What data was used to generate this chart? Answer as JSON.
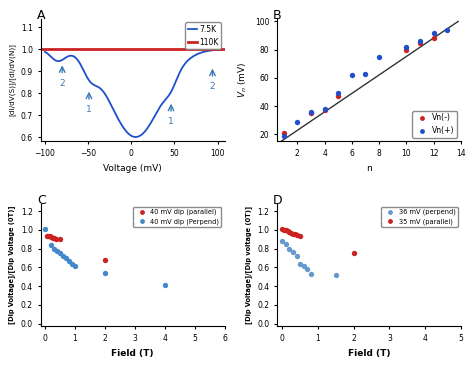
{
  "panel_A": {
    "title": "A",
    "xlabel": "Voltage (mV)",
    "ylabel": "[dI/dV(S)]/[dI/dV(N)]",
    "xlim": [
      -105,
      108
    ],
    "ylim": [
      0.58,
      1.14
    ],
    "yticks": [
      0.6,
      0.7,
      0.8,
      0.9,
      1.0,
      1.1
    ],
    "xticks": [
      -100,
      -50,
      0,
      50,
      100
    ],
    "line_75K_color": "#1f4fcc",
    "line_110K_color": "#cc2222",
    "legend_75K": "7.5K",
    "legend_110K": "110K",
    "arrow_color": "#3a7ab5"
  },
  "panel_B": {
    "title": "B",
    "xlabel": "n",
    "ylabel": "V_n (mV)",
    "xlim": [
      0.5,
      14
    ],
    "ylim": [
      15,
      102
    ],
    "yticks": [
      20,
      40,
      60,
      80,
      100
    ],
    "xticks": [
      2,
      4,
      6,
      8,
      10,
      12,
      14
    ],
    "Vn_neg_x": [
      1,
      3,
      4,
      5,
      10,
      11,
      12
    ],
    "Vn_neg_y": [
      21,
      35,
      37,
      47,
      80,
      85,
      88
    ],
    "Vn_pos_x": [
      1,
      2,
      3,
      4,
      5,
      6,
      7,
      8,
      10,
      11,
      12,
      13
    ],
    "Vn_pos_y": [
      19,
      29,
      36,
      38,
      49,
      62,
      63,
      75,
      82,
      86,
      92,
      94
    ],
    "fit_x": [
      0.5,
      13.8
    ],
    "fit_y": [
      13,
      100
    ],
    "neg_color": "#cc2222",
    "pos_color": "#1f4fcc"
  },
  "panel_C": {
    "title": "C",
    "xlabel": "Field (T)",
    "ylabel": "[Dip Voltage]/[Dip Voltage (0T)]",
    "xlim": [
      -0.15,
      6
    ],
    "ylim": [
      -0.03,
      1.28
    ],
    "yticks": [
      0,
      0.2,
      0.4,
      0.6,
      0.8,
      1.0,
      1.2
    ],
    "xticks": [
      0,
      1,
      2,
      3,
      4,
      5,
      6
    ],
    "parallel_x": [
      0.05,
      0.1,
      0.15,
      0.2,
      0.25,
      0.3,
      0.35,
      0.5,
      2.0
    ],
    "parallel_y": [
      0.93,
      0.94,
      0.93,
      0.92,
      0.91,
      0.91,
      0.9,
      0.9,
      0.68
    ],
    "perp_x": [
      0.0,
      0.2,
      0.3,
      0.4,
      0.5,
      0.6,
      0.7,
      0.8,
      0.9,
      1.0,
      2.0,
      4.0
    ],
    "perp_y": [
      1.01,
      0.84,
      0.8,
      0.78,
      0.75,
      0.72,
      0.7,
      0.67,
      0.64,
      0.61,
      0.54,
      0.41
    ],
    "parallel_color": "#cc2222",
    "perp_color": "#4488cc",
    "legend_parallel": "40 mV dip (parallel)",
    "legend_perp": "40 mV dip (Perpend)"
  },
  "panel_D": {
    "title": "D",
    "xlabel": "Field (T)",
    "ylabel": "[Dip Voitage]/[Dip voltage (0T)]",
    "xlim": [
      -0.15,
      5
    ],
    "ylim": [
      -0.03,
      1.28
    ],
    "yticks": [
      0,
      0.2,
      0.4,
      0.6,
      0.8,
      1.0,
      1.2
    ],
    "xticks": [
      0,
      1,
      2,
      3,
      4,
      5
    ],
    "perp36_x": [
      0.0,
      0.1,
      0.2,
      0.3,
      0.4,
      0.5,
      0.6,
      0.7,
      0.8,
      1.5
    ],
    "perp36_y": [
      0.88,
      0.85,
      0.8,
      0.76,
      0.72,
      0.64,
      0.62,
      0.58,
      0.53,
      0.52
    ],
    "par35_x": [
      0.0,
      0.05,
      0.1,
      0.15,
      0.2,
      0.25,
      0.3,
      0.35,
      0.4,
      0.5,
      2.0
    ],
    "par35_y": [
      1.01,
      1.0,
      1.0,
      0.99,
      0.98,
      0.97,
      0.96,
      0.96,
      0.95,
      0.94,
      0.75
    ],
    "perp_color": "#6699cc",
    "par_color": "#cc2222",
    "legend_perp": "36 mV (perpend)",
    "legend_par": "35 mV (parallel)"
  }
}
